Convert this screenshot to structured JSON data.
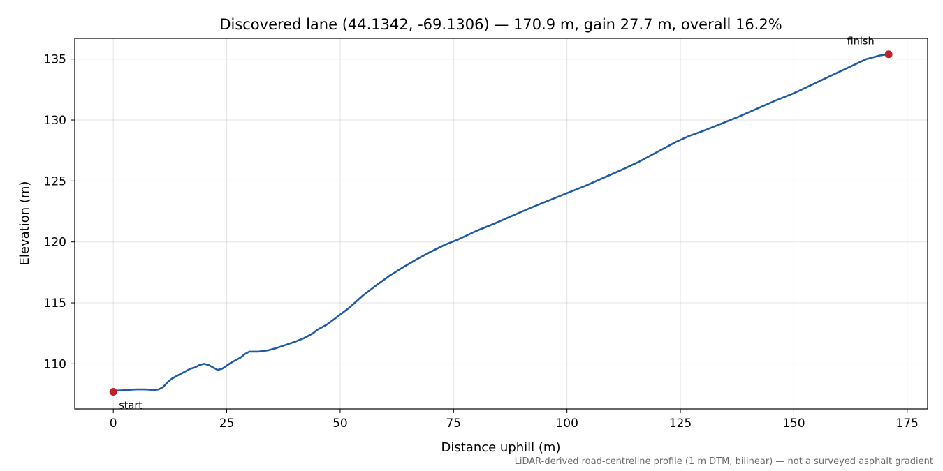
{
  "chart_data": {
    "type": "line",
    "title": "Discovered lane (44.1342, -69.1306) — 170.9 m, gain 27.7 m, overall 16.2%",
    "xlabel": "Distance uphill (m)",
    "ylabel": "Elevation (m)",
    "xlim": [
      -8.5,
      179.5
    ],
    "ylim": [
      106.3,
      136.7
    ],
    "xticks": [
      0,
      25,
      50,
      75,
      100,
      125,
      150,
      175
    ],
    "yticks": [
      110,
      115,
      120,
      125,
      130,
      135
    ],
    "grid": true,
    "colors": {
      "line": "#1f5aa6",
      "marker": "#c0202a"
    },
    "series": [
      {
        "x": [
          0,
          1,
          3,
          5,
          7,
          9,
          10,
          11,
          12,
          13,
          14,
          15,
          16,
          17,
          18,
          19,
          20,
          21,
          22,
          23,
          24,
          25,
          26,
          27,
          28,
          29,
          30,
          31,
          32,
          33,
          34,
          36,
          38,
          40,
          42,
          44,
          45,
          47,
          49,
          52,
          55,
          58,
          61,
          64,
          67,
          70,
          73,
          76,
          80,
          84,
          88,
          92,
          96,
          100,
          104,
          108,
          112,
          116,
          120,
          124,
          127,
          130,
          134,
          138,
          142,
          146,
          150,
          154,
          158,
          162,
          166,
          169,
          170.9
        ],
        "y": [
          107.7,
          107.8,
          107.85,
          107.9,
          107.9,
          107.85,
          107.9,
          108.1,
          108.5,
          108.8,
          109.0,
          109.2,
          109.4,
          109.6,
          109.7,
          109.9,
          110.0,
          109.9,
          109.7,
          109.5,
          109.6,
          109.85,
          110.1,
          110.3,
          110.5,
          110.8,
          111.0,
          111.0,
          111.0,
          111.05,
          111.1,
          111.3,
          111.55,
          111.8,
          112.1,
          112.5,
          112.8,
          113.2,
          113.75,
          114.6,
          115.6,
          116.45,
          117.25,
          117.95,
          118.6,
          119.2,
          119.75,
          120.2,
          120.9,
          121.5,
          122.15,
          122.8,
          123.4,
          124.0,
          124.6,
          125.25,
          125.9,
          126.6,
          127.4,
          128.2,
          128.7,
          129.1,
          129.7,
          130.3,
          130.95,
          131.6,
          132.2,
          132.9,
          133.6,
          134.3,
          135.0,
          135.3,
          135.4
        ]
      }
    ],
    "annotations": [
      {
        "text": "start",
        "x": 0,
        "y": 107.7
      },
      {
        "text": "finish",
        "x": 170.9,
        "y": 135.4
      }
    ],
    "footnote": "LiDAR-derived road-centreline profile (1 m DTM, bilinear) — not a surveyed asphalt gradient"
  }
}
